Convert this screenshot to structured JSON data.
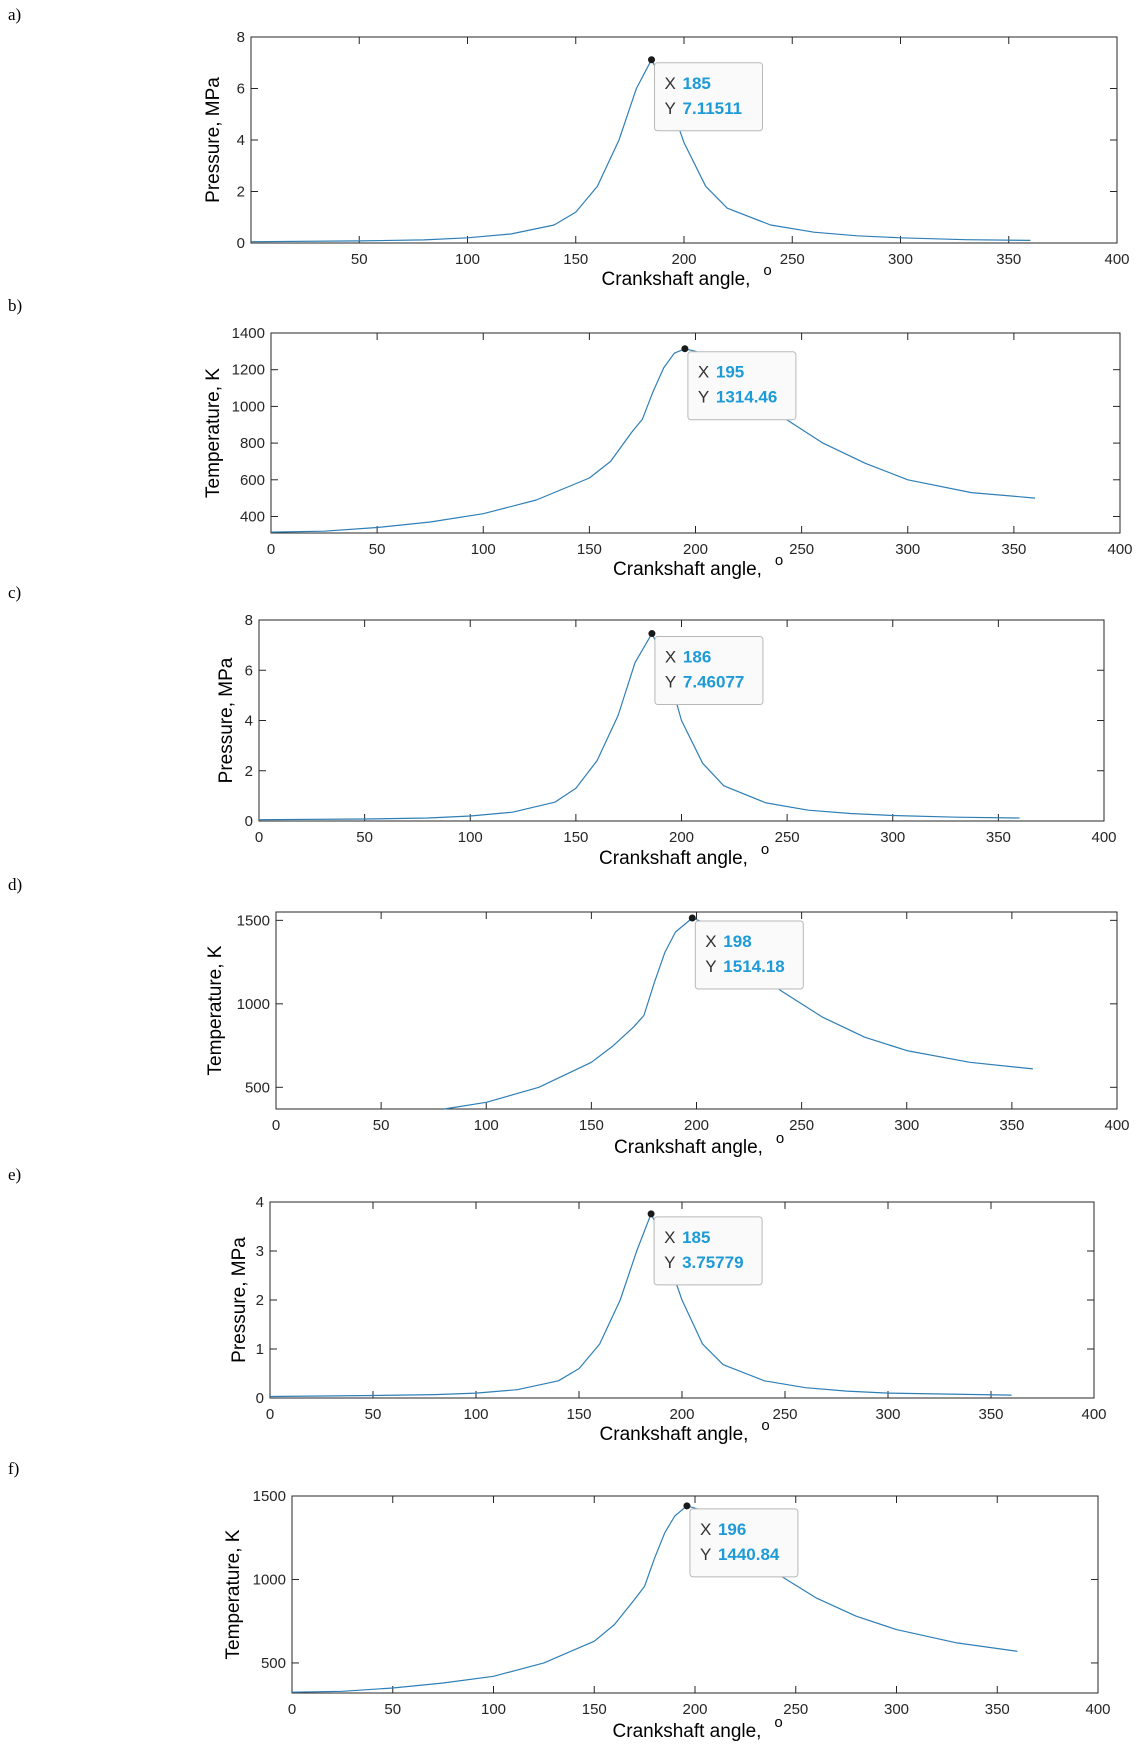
{
  "chart_data": [
    {
      "type": "line",
      "panel_label": "a)",
      "xlabel": "Crankshaft angle,",
      "xlabel_unit": "o",
      "ylabel": "Pressure, MPa",
      "xlim": [
        0,
        400
      ],
      "ylim": [
        0,
        8
      ],
      "xticks": [
        50,
        100,
        150,
        200,
        250,
        300,
        350,
        400
      ],
      "yticks": [
        0,
        2,
        4,
        6,
        8
      ],
      "series": [
        {
          "color": "#2f7fb6",
          "x": [
            0,
            50,
            80,
            100,
            120,
            140,
            150,
            160,
            170,
            178,
            185,
            190,
            195,
            200,
            210,
            220,
            240,
            260,
            280,
            300,
            330,
            360
          ],
          "y": [
            0.05,
            0.08,
            0.12,
            0.2,
            0.35,
            0.7,
            1.2,
            2.2,
            4.0,
            6.0,
            7.12,
            6.3,
            5.1,
            3.9,
            2.2,
            1.35,
            0.7,
            0.42,
            0.28,
            0.2,
            0.13,
            0.1
          ]
        }
      ],
      "datatip": {
        "x": 185,
        "y": 7.11511,
        "x_text": "185",
        "y_text": "7.11511",
        "x_key": "X",
        "y_key": "Y"
      }
    },
    {
      "type": "line",
      "panel_label": "b)",
      "xlabel": "Crankshaft angle,",
      "xlabel_unit": "o",
      "ylabel": "Temperature, K",
      "xlim": [
        0,
        400
      ],
      "ylim": [
        310,
        1400
      ],
      "xticks": [
        0,
        50,
        100,
        150,
        200,
        250,
        300,
        350,
        400
      ],
      "yticks": [
        400,
        600,
        800,
        1000,
        1200,
        1400
      ],
      "series": [
        {
          "color": "#2f7fb6",
          "x": [
            0,
            25,
            50,
            75,
            100,
            125,
            150,
            160,
            170,
            175,
            180,
            185,
            190,
            195,
            200,
            210,
            220,
            240,
            260,
            280,
            300,
            330,
            360
          ],
          "y": [
            315,
            320,
            340,
            370,
            415,
            490,
            610,
            700,
            860,
            930,
            1080,
            1210,
            1290,
            1314,
            1300,
            1230,
            1130,
            950,
            800,
            690,
            600,
            530,
            500
          ]
        }
      ],
      "datatip": {
        "x": 195,
        "y": 1314.46,
        "x_text": "195",
        "y_text": "1314.46",
        "x_key": "X",
        "y_key": "Y"
      }
    },
    {
      "type": "line",
      "panel_label": "c)",
      "xlabel": "Crankshaft angle,",
      "xlabel_unit": "o",
      "ylabel": "Pressure, MPa",
      "xlim": [
        0,
        400
      ],
      "ylim": [
        0,
        8
      ],
      "xticks": [
        0,
        50,
        100,
        150,
        200,
        250,
        300,
        350,
        400
      ],
      "yticks": [
        0,
        2,
        4,
        6,
        8
      ],
      "series": [
        {
          "color": "#2f7fb6",
          "x": [
            0,
            50,
            80,
            100,
            120,
            140,
            150,
            160,
            170,
            178,
            186,
            191,
            196,
            200,
            210,
            220,
            240,
            260,
            280,
            300,
            330,
            360
          ],
          "y": [
            0.05,
            0.08,
            0.12,
            0.2,
            0.35,
            0.75,
            1.3,
            2.4,
            4.2,
            6.3,
            7.46,
            6.6,
            5.2,
            4.0,
            2.3,
            1.4,
            0.72,
            0.43,
            0.3,
            0.22,
            0.15,
            0.12
          ]
        }
      ],
      "datatip": {
        "x": 186,
        "y": 7.46077,
        "x_text": "186",
        "y_text": "7.46077",
        "x_key": "X",
        "y_key": "Y"
      }
    },
    {
      "type": "line",
      "panel_label": "d)",
      "xlabel": "Crankshaft angle,",
      "xlabel_unit": "o",
      "ylabel": "Temperature, K",
      "xlim": [
        0,
        400
      ],
      "ylim": [
        370,
        1550
      ],
      "xticks": [
        0,
        50,
        100,
        150,
        200,
        250,
        300,
        350,
        400
      ],
      "yticks": [
        500,
        1000,
        1500
      ],
      "series": [
        {
          "color": "#2f7fb6",
          "x": [
            80,
            100,
            125,
            150,
            160,
            170,
            175,
            180,
            185,
            190,
            198,
            205,
            215,
            225,
            240,
            260,
            280,
            300,
            330,
            360
          ],
          "y": [
            370,
            410,
            500,
            650,
            745,
            860,
            930,
            1130,
            1310,
            1430,
            1514,
            1480,
            1370,
            1240,
            1080,
            920,
            800,
            720,
            650,
            610
          ]
        }
      ],
      "datatip": {
        "x": 198,
        "y": 1514.18,
        "x_text": "198",
        "y_text": "1514.18",
        "x_key": "X",
        "y_key": "Y"
      }
    },
    {
      "type": "line",
      "panel_label": "e)",
      "xlabel": "Crankshaft angle,",
      "xlabel_unit": "o",
      "ylabel": "Pressure, MPa",
      "xlim": [
        0,
        400
      ],
      "ylim": [
        0,
        4
      ],
      "xticks": [
        0,
        50,
        100,
        150,
        200,
        250,
        300,
        350,
        400
      ],
      "yticks": [
        0,
        1,
        2,
        3,
        4
      ],
      "series": [
        {
          "color": "#2f7fb6",
          "x": [
            0,
            50,
            80,
            100,
            120,
            140,
            150,
            160,
            170,
            178,
            185,
            190,
            195,
            200,
            210,
            220,
            240,
            260,
            280,
            300,
            330,
            360
          ],
          "y": [
            0.03,
            0.05,
            0.07,
            0.1,
            0.17,
            0.35,
            0.6,
            1.1,
            2.0,
            3.0,
            3.76,
            3.3,
            2.6,
            2.0,
            1.1,
            0.68,
            0.35,
            0.21,
            0.14,
            0.1,
            0.08,
            0.06
          ]
        }
      ],
      "datatip": {
        "x": 185,
        "y": 3.75779,
        "x_text": "185",
        "y_text": "3.75779",
        "x_key": "X",
        "y_key": "Y"
      }
    },
    {
      "type": "line",
      "panel_label": "f)",
      "xlabel": "Crankshaft angle,",
      "xlabel_unit": "o",
      "ylabel": "Temperature, K",
      "xlim": [
        0,
        400
      ],
      "ylim": [
        320,
        1500
      ],
      "xticks": [
        0,
        50,
        100,
        150,
        200,
        250,
        300,
        350,
        400
      ],
      "yticks": [
        500,
        1000,
        1500
      ],
      "ytick_labels": [
        "500",
        "1000",
        "1500"
      ],
      "series": [
        {
          "color": "#2f7fb6",
          "x": [
            0,
            25,
            50,
            75,
            100,
            125,
            150,
            160,
            170,
            175,
            180,
            185,
            190,
            196,
            202,
            210,
            220,
            240,
            260,
            280,
            300,
            330,
            360
          ],
          "y": [
            325,
            330,
            350,
            380,
            420,
            500,
            630,
            730,
            880,
            960,
            1130,
            1280,
            1380,
            1441,
            1420,
            1340,
            1220,
            1040,
            890,
            780,
            700,
            620,
            570
          ]
        }
      ],
      "datatip": {
        "x": 196,
        "y": 1440.84,
        "x_text": "196",
        "y_text": "1440.84",
        "x_key": "X",
        "y_key": "Y"
      }
    }
  ]
}
